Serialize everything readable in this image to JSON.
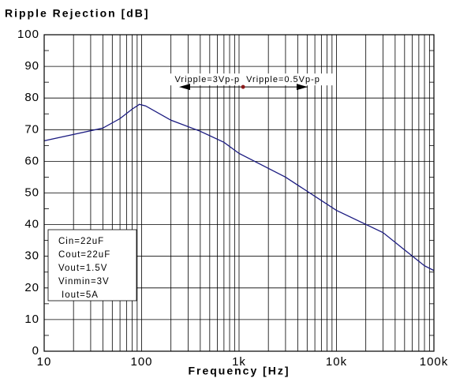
{
  "chart_data": {
    "type": "line",
    "title": "Ripple Rejection [dB]",
    "xlabel": "Frequency [Hz]",
    "log_x": true,
    "grid": true,
    "xlim": [
      10,
      100000
    ],
    "ylim": [
      0,
      100
    ],
    "xticks": [
      10,
      100,
      {
        "value": 1000,
        "label": "1k"
      },
      {
        "value": 10000,
        "label": "10k"
      },
      {
        "value": 100000,
        "label": "100k"
      }
    ],
    "yticks": [
      0,
      10,
      20,
      30,
      40,
      50,
      60,
      70,
      80,
      90,
      100
    ],
    "series": [
      {
        "name": null,
        "color": "#1a1a80",
        "x": [
          10,
          40,
          60,
          80,
          95,
          110,
          200,
          400,
          700,
          1000,
          3000,
          10000,
          30000,
          50000,
          80000,
          100000
        ],
        "values": [
          66.5,
          70.5,
          73.5,
          76.5,
          78,
          77.5,
          73,
          69.5,
          66,
          62.5,
          55,
          44.5,
          37.5,
          32,
          27,
          25.5
        ]
      }
    ],
    "annotations": [
      {
        "text": "Vripple=3Vp-p",
        "x": 1100,
        "y": 83.5,
        "color": "#8b1a1a"
      },
      {
        "text": "Vripple=0.5Vp-p"
      }
    ],
    "conditions": [
      "Cin=22uF",
      "Cout=22uF",
      "Vout=1.5V",
      "Vinmin=3V",
      "Iout=5A"
    ]
  }
}
